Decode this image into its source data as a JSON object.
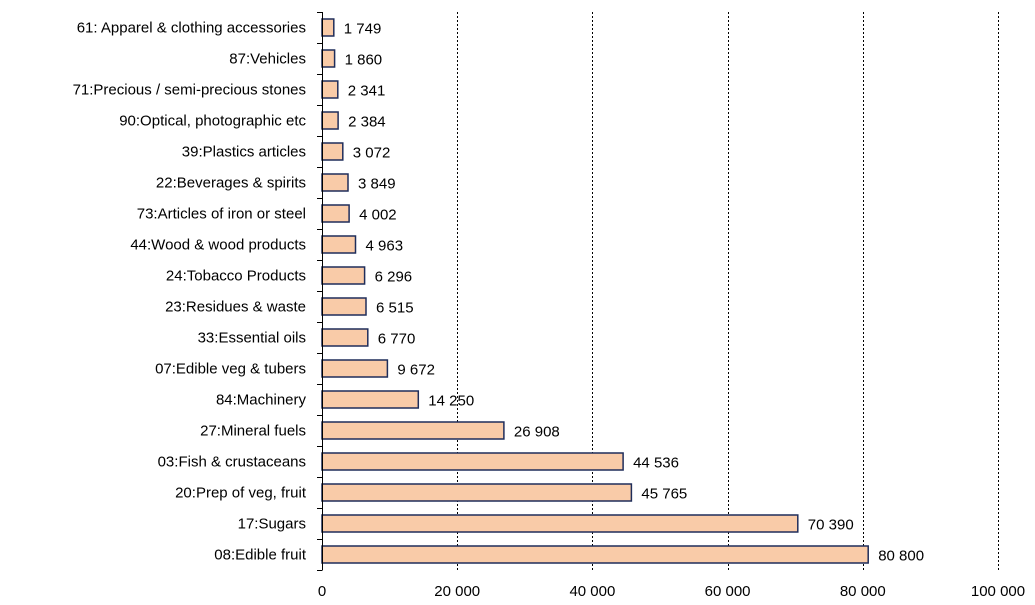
{
  "chart_data": {
    "type": "bar",
    "orientation": "horizontal",
    "title": "",
    "xlabel": "",
    "ylabel": "",
    "categories": [
      "61: Apparel & clothing accessories",
      "87:Vehicles",
      "71:Precious /  semi-precious stones",
      "90:Optical, photographic etc",
      "39:Plastics articles",
      "22:Beverages & spirits",
      "73:Articles of iron or steel",
      "44:Wood & wood products",
      "24:Tobacco Products",
      "23:Residues & waste",
      "33:Essential oils",
      "07:Edible veg & tubers",
      "84:Machinery",
      "27:Mineral fuels",
      "03:Fish & crustaceans",
      "20:Prep of veg, fruit",
      "17:Sugars",
      "08:Edible fruit"
    ],
    "values": [
      1749,
      1860,
      2341,
      2384,
      3072,
      3849,
      4002,
      4963,
      6296,
      6515,
      6770,
      9672,
      14250,
      26908,
      44536,
      45765,
      70390,
      80800
    ],
    "value_labels": [
      "1 749",
      "1 860",
      "2 341",
      "2 384",
      "3 072",
      "3 849",
      "4 002",
      "4 963",
      "6 296",
      "6 515",
      "6 770",
      "9 672",
      "14 250",
      "26 908",
      "44 536",
      "45 765",
      "70 390",
      "80 800"
    ],
    "xlim": [
      0,
      100000
    ],
    "ticks": [
      0,
      20000,
      40000,
      60000,
      80000,
      100000
    ],
    "tick_labels": [
      "0",
      "20 000",
      "40 000",
      "60 000",
      "80 000",
      "100 000"
    ],
    "grid": "vertical-dotted",
    "legend": "none",
    "bar_fill": "#f9cba8",
    "bar_stroke": "#1f2d5a"
  }
}
